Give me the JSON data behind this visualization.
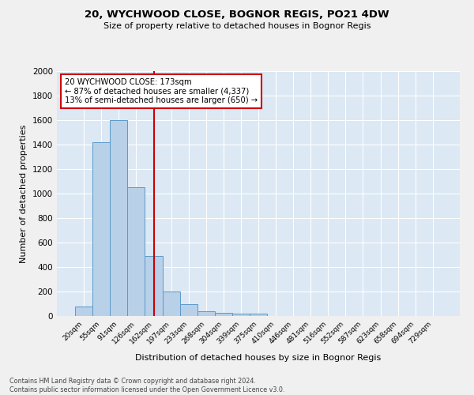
{
  "title1": "20, WYCHWOOD CLOSE, BOGNOR REGIS, PO21 4DW",
  "title2": "Size of property relative to detached houses in Bognor Regis",
  "xlabel": "Distribution of detached houses by size in Bognor Regis",
  "ylabel": "Number of detached properties",
  "footnote": "Contains HM Land Registry data © Crown copyright and database right 2024.\nContains public sector information licensed under the Open Government Licence v3.0.",
  "categories": [
    "20sqm",
    "55sqm",
    "91sqm",
    "126sqm",
    "162sqm",
    "197sqm",
    "233sqm",
    "268sqm",
    "304sqm",
    "339sqm",
    "375sqm",
    "410sqm",
    "446sqm",
    "481sqm",
    "516sqm",
    "552sqm",
    "587sqm",
    "623sqm",
    "658sqm",
    "694sqm",
    "729sqm"
  ],
  "values": [
    80,
    1420,
    1600,
    1050,
    490,
    200,
    100,
    40,
    28,
    22,
    18,
    0,
    0,
    0,
    0,
    0,
    0,
    0,
    0,
    0,
    0
  ],
  "bar_color": "#b8d0e8",
  "bar_edge_color": "#5a9ac8",
  "vline_x_index": 4,
  "vline_color": "#cc0000",
  "annotation_title": "20 WYCHWOOD CLOSE: 173sqm",
  "annotation_line1": "← 87% of detached houses are smaller (4,337)",
  "annotation_line2": "13% of semi-detached houses are larger (650) →",
  "annotation_box_color": "#ffffff",
  "annotation_border_color": "#cc0000",
  "ylim": [
    0,
    2000
  ],
  "yticks": [
    0,
    200,
    400,
    600,
    800,
    1000,
    1200,
    1400,
    1600,
    1800,
    2000
  ],
  "background_color": "#dce8f4",
  "grid_color": "#ffffff",
  "fig_bg_color": "#f0f0f0"
}
